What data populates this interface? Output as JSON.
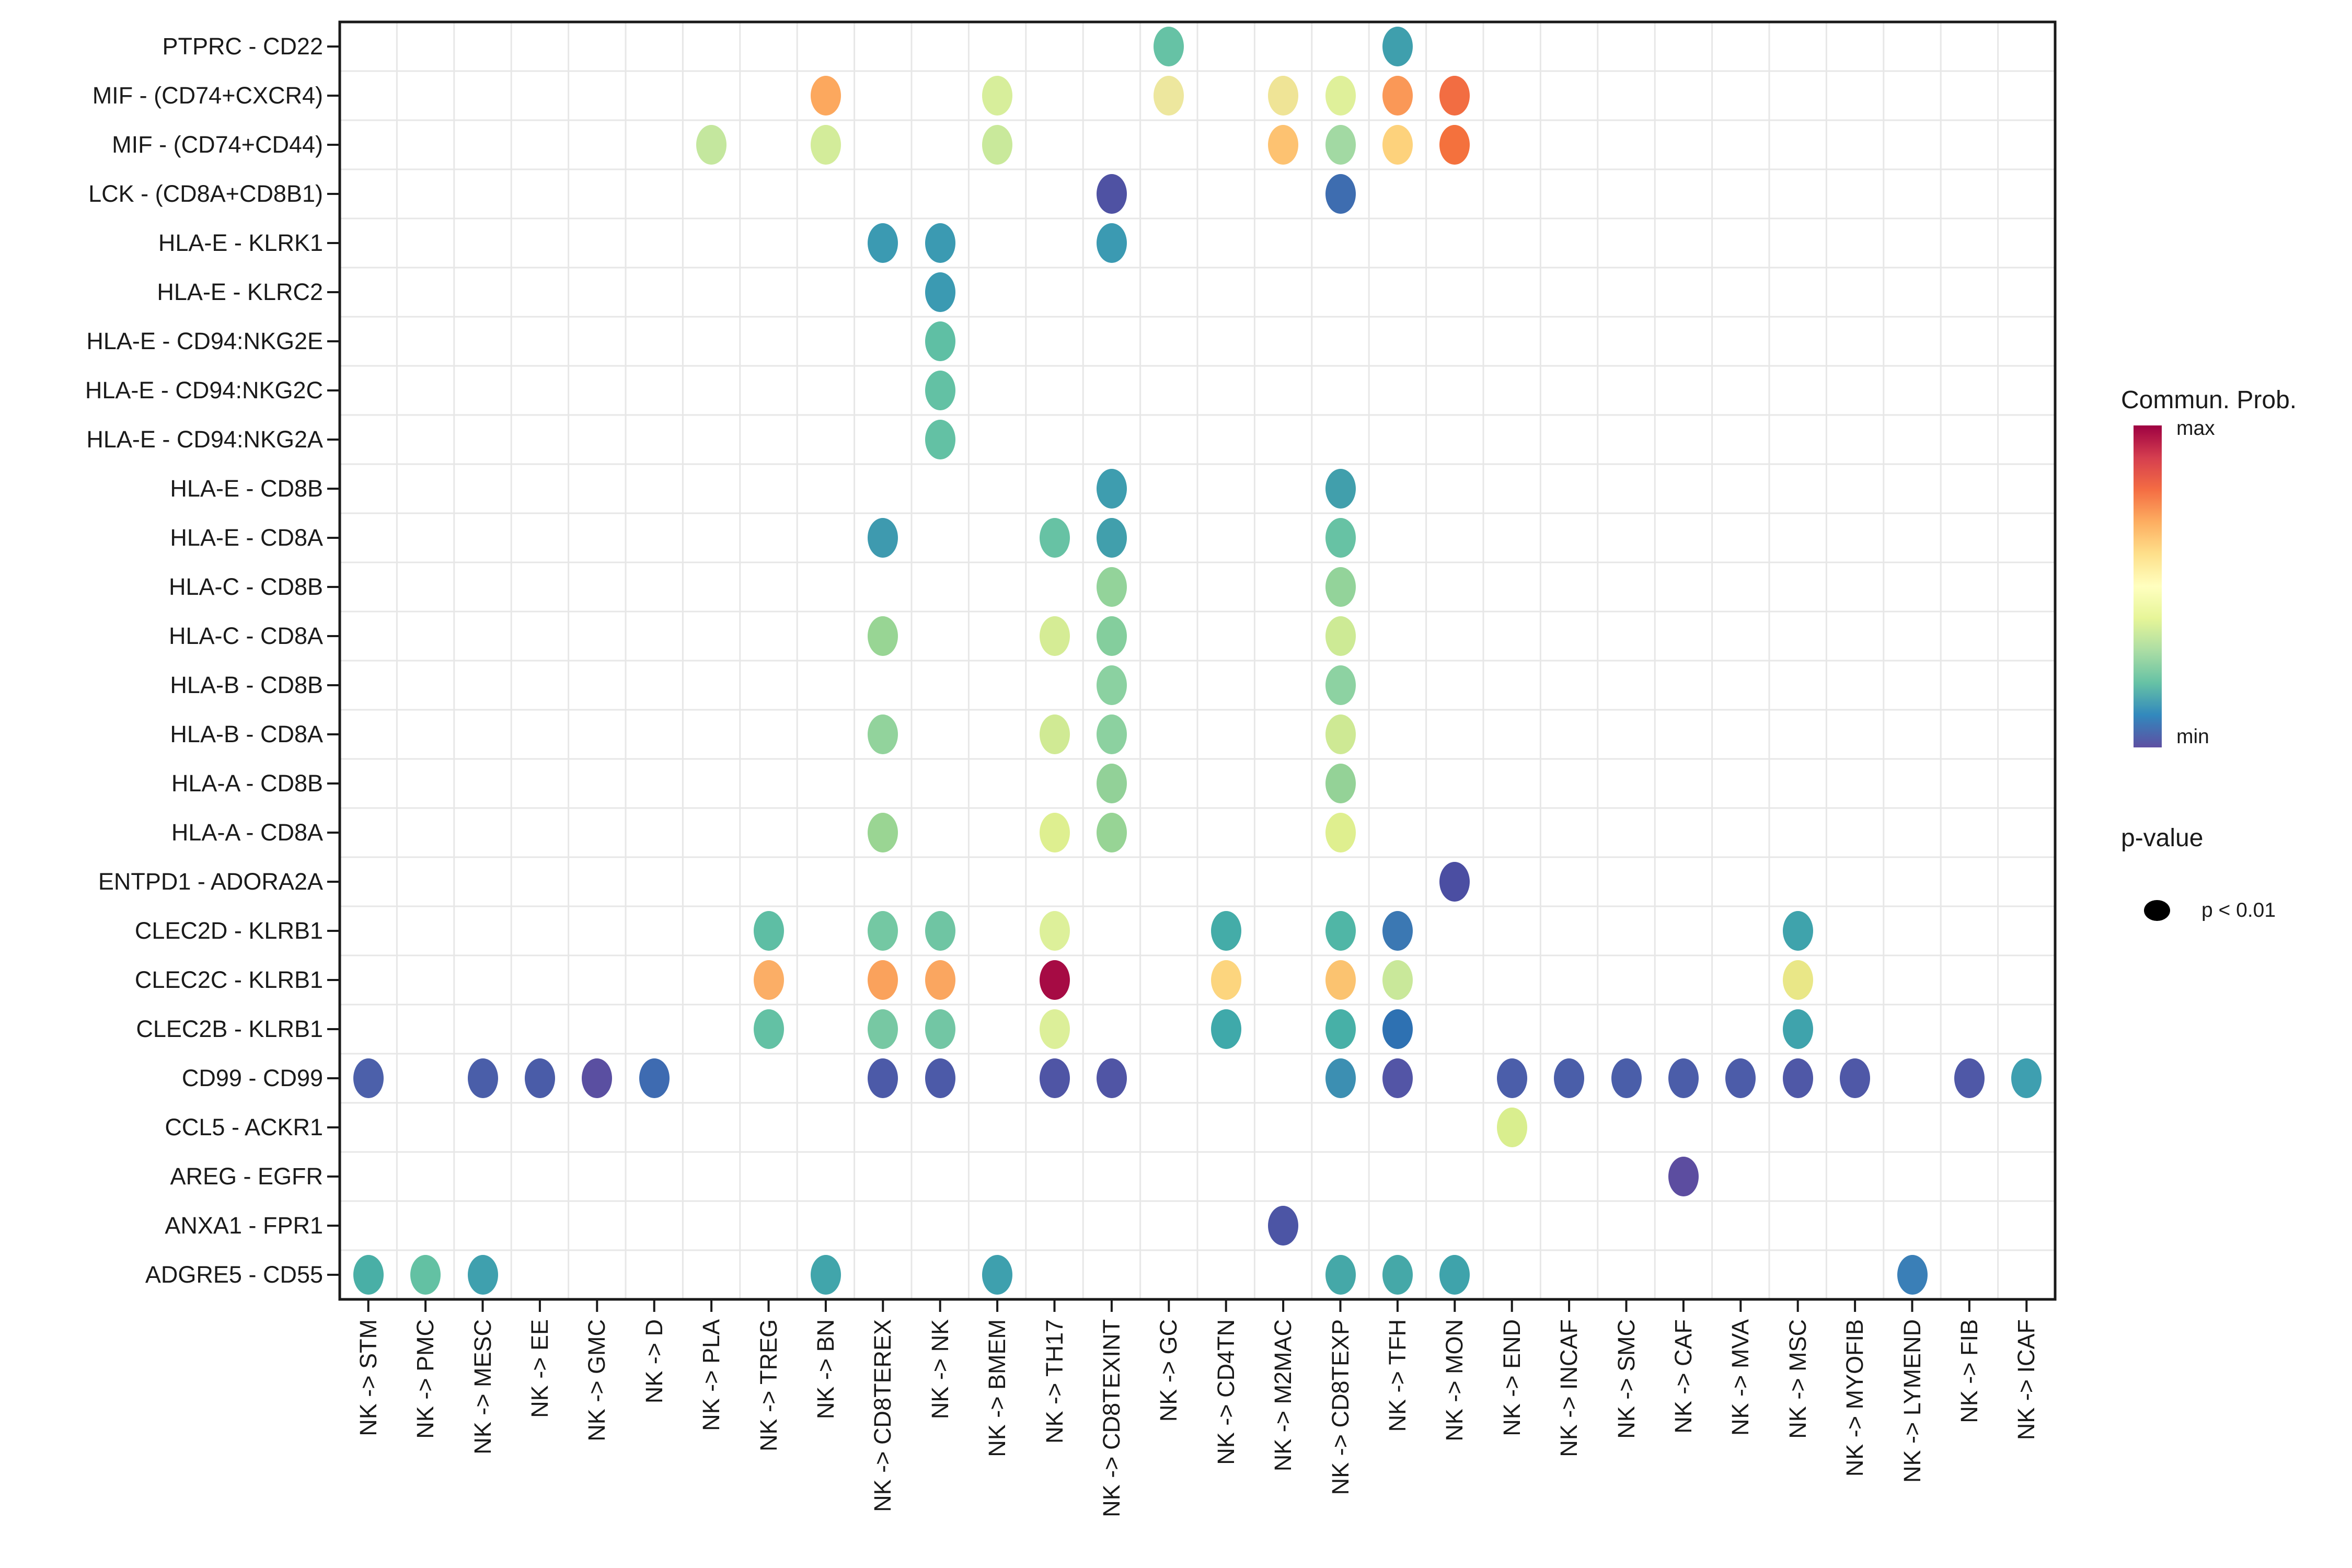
{
  "chart_data": {
    "type": "scatter",
    "subtype": "bubble-dotplot",
    "title": "",
    "xlabel": "",
    "ylabel": "",
    "grid": true,
    "legend_position": "right",
    "rows": [
      "PTPRC - CD22",
      "MIF - (CD74+CXCR4)",
      "MIF - (CD74+CD44)",
      "LCK - (CD8A+CD8B1)",
      "HLA-E - KLRK1",
      "HLA-E - KLRC2",
      "HLA-E - CD94:NKG2E",
      "HLA-E - CD94:NKG2C",
      "HLA-E - CD94:NKG2A",
      "HLA-E - CD8B",
      "HLA-E - CD8A",
      "HLA-C - CD8B",
      "HLA-C - CD8A",
      "HLA-B - CD8B",
      "HLA-B - CD8A",
      "HLA-A - CD8B",
      "HLA-A - CD8A",
      "ENTPD1 - ADORA2A",
      "CLEC2D - KLRB1",
      "CLEC2C - KLRB1",
      "CLEC2B - KLRB1",
      "CD99 - CD99",
      "CCL5 - ACKR1",
      "AREG - EGFR",
      "ANXA1 - FPR1",
      "ADGRE5 - CD55"
    ],
    "columns": [
      "NK -> STM",
      "NK -> PMC",
      "NK -> MESC",
      "NK -> EE",
      "NK -> GMC",
      "NK -> D",
      "NK -> PLA",
      "NK -> TREG",
      "NK -> BN",
      "NK -> CD8TEREX",
      "NK -> NK",
      "NK -> BMEM",
      "NK -> TH17",
      "NK -> CD8TEXINT",
      "NK -> GC",
      "NK -> CD4TN",
      "NK -> M2MAC",
      "NK -> CD8TEXP",
      "NK -> TFH",
      "NK -> MON",
      "NK -> END",
      "NK -> INCAF",
      "NK -> SMC",
      "NK -> CAF",
      "NK -> MVA",
      "NK -> MSC",
      "NK -> MYOFIB",
      "NK -> LYMEND",
      "NK -> FIB",
      "NK -> ICAF"
    ],
    "legend": {
      "color_title": "Commun. Prob.",
      "color_max_label": "max",
      "color_min_label": "min",
      "size_title": "p-value",
      "size_label": "p < 0.01"
    },
    "colormap": [
      "#9E0142",
      "#D53E4F",
      "#F46D43",
      "#FDAE61",
      "#FEE08B",
      "#FFFFBF",
      "#E6F598",
      "#ABDDA4",
      "#66C2A5",
      "#3288BD",
      "#5E4FA2"
    ],
    "colors": {
      "axis": "#1a1a1a",
      "gridline": "#e7e7e7",
      "panel_bg": "#ffffff"
    },
    "dots": [
      {
        "row": "PTPRC - CD22",
        "col": "NK -> GC",
        "color": "#66C2A5"
      },
      {
        "row": "PTPRC - CD22",
        "col": "NK -> TFH",
        "color": "#3F9FAD"
      },
      {
        "row": "MIF - (CD74+CXCR4)",
        "col": "NK -> BN",
        "color": "#FCA85E"
      },
      {
        "row": "MIF - (CD74+CXCR4)",
        "col": "NK -> BMEM",
        "color": "#D7EE9B"
      },
      {
        "row": "MIF - (CD74+CXCR4)",
        "col": "NK -> GC",
        "color": "#EDE79E"
      },
      {
        "row": "MIF - (CD74+CXCR4)",
        "col": "NK -> M2MAC",
        "color": "#EFE496"
      },
      {
        "row": "MIF - (CD74+CXCR4)",
        "col": "NK -> CD8TEXP",
        "color": "#DFF09A"
      },
      {
        "row": "MIF - (CD74+CXCR4)",
        "col": "NK -> TFH",
        "color": "#FA9857"
      },
      {
        "row": "MIF - (CD74+CXCR4)",
        "col": "NK -> MON",
        "color": "#F26D42"
      },
      {
        "row": "MIF - (CD74+CD44)",
        "col": "NK -> PLA",
        "color": "#C4E79E"
      },
      {
        "row": "MIF - (CD74+CD44)",
        "col": "NK -> BN",
        "color": "#D3EC9A"
      },
      {
        "row": "MIF - (CD74+CD44)",
        "col": "NK -> BMEM",
        "color": "#C9E99B"
      },
      {
        "row": "MIF - (CD74+CD44)",
        "col": "NK -> M2MAC",
        "color": "#FDC271"
      },
      {
        "row": "MIF - (CD74+CD44)",
        "col": "NK -> CD8TEXP",
        "color": "#A2D9A3"
      },
      {
        "row": "MIF - (CD74+CD44)",
        "col": "NK -> TFH",
        "color": "#FDD27C"
      },
      {
        "row": "MIF - (CD74+CD44)",
        "col": "NK -> MON",
        "color": "#F4713D"
      },
      {
        "row": "LCK - (CD8A+CD8B1)",
        "col": "NK -> CD8TEXINT",
        "color": "#4F52A3"
      },
      {
        "row": "LCK - (CD8A+CD8B1)",
        "col": "NK -> CD8TEXP",
        "color": "#3E6DB0"
      },
      {
        "row": "HLA-E - KLRK1",
        "col": "NK -> CD8TEREX",
        "color": "#3B9AB2"
      },
      {
        "row": "HLA-E - KLRK1",
        "col": "NK -> NK",
        "color": "#3B9AB2"
      },
      {
        "row": "HLA-E - KLRK1",
        "col": "NK -> CD8TEXINT",
        "color": "#3B9AB2"
      },
      {
        "row": "HLA-E - KLRC2",
        "col": "NK -> NK",
        "color": "#3B9AB2"
      },
      {
        "row": "HLA-E - CD94:NKG2E",
        "col": "NK -> NK",
        "color": "#5FBFA4"
      },
      {
        "row": "HLA-E - CD94:NKG2C",
        "col": "NK -> NK",
        "color": "#63C1A4"
      },
      {
        "row": "HLA-E - CD94:NKG2A",
        "col": "NK -> NK",
        "color": "#63C1A4"
      },
      {
        "row": "HLA-E - CD8B",
        "col": "NK -> CD8TEXINT",
        "color": "#3E9DAF"
      },
      {
        "row": "HLA-E - CD8B",
        "col": "NK -> CD8TEXP",
        "color": "#419FAC"
      },
      {
        "row": "HLA-E - CD8A",
        "col": "NK -> CD8TEREX",
        "color": "#3E9AAF"
      },
      {
        "row": "HLA-E - CD8A",
        "col": "NK -> TH17",
        "color": "#67C2A4"
      },
      {
        "row": "HLA-E - CD8A",
        "col": "NK -> CD8TEXINT",
        "color": "#419FAC"
      },
      {
        "row": "HLA-E - CD8A",
        "col": "NK -> CD8TEXP",
        "color": "#67C2A4"
      },
      {
        "row": "HLA-C - CD8B",
        "col": "NK -> CD8TEXINT",
        "color": "#93D39A"
      },
      {
        "row": "HLA-C - CD8B",
        "col": "NK -> CD8TEXP",
        "color": "#93D39A"
      },
      {
        "row": "HLA-C - CD8A",
        "col": "NK -> CD8TEREX",
        "color": "#98D594"
      },
      {
        "row": "HLA-C - CD8A",
        "col": "NK -> TH17",
        "color": "#D5EC95"
      },
      {
        "row": "HLA-C - CD8A",
        "col": "NK -> CD8TEXINT",
        "color": "#84CE9D"
      },
      {
        "row": "HLA-C - CD8A",
        "col": "NK -> CD8TEXP",
        "color": "#CDEA95"
      },
      {
        "row": "HLA-B - CD8B",
        "col": "NK -> CD8TEXINT",
        "color": "#8BD1A1"
      },
      {
        "row": "HLA-B - CD8B",
        "col": "NK -> CD8TEXP",
        "color": "#8DD2A2"
      },
      {
        "row": "HLA-B - CD8A",
        "col": "NK -> CD8TEREX",
        "color": "#92D39C"
      },
      {
        "row": "HLA-B - CD8A",
        "col": "NK -> TH17",
        "color": "#D0EA94"
      },
      {
        "row": "HLA-B - CD8A",
        "col": "NK -> CD8TEXINT",
        "color": "#8CD1A0"
      },
      {
        "row": "HLA-B - CD8A",
        "col": "NK -> CD8TEXP",
        "color": "#CEE994"
      },
      {
        "row": "HLA-A - CD8B",
        "col": "NK -> CD8TEXINT",
        "color": "#92D198"
      },
      {
        "row": "HLA-A - CD8B",
        "col": "NK -> CD8TEXP",
        "color": "#94D297"
      },
      {
        "row": "HLA-A - CD8A",
        "col": "NK -> CD8TEREX",
        "color": "#9AD593"
      },
      {
        "row": "HLA-A - CD8A",
        "col": "NK -> TH17",
        "color": "#DEEF90"
      },
      {
        "row": "HLA-A - CD8A",
        "col": "NK -> CD8TEXINT",
        "color": "#97D495"
      },
      {
        "row": "HLA-A - CD8A",
        "col": "NK -> CD8TEXP",
        "color": "#DFEF8F"
      },
      {
        "row": "ENTPD1 - ADORA2A",
        "col": "NK -> MON",
        "color": "#4B4EA2"
      },
      {
        "row": "CLEC2D - KLRB1",
        "col": "NK -> TREG",
        "color": "#5EBEA4"
      },
      {
        "row": "CLEC2D - KLRB1",
        "col": "NK -> CD8TEREX",
        "color": "#74C8A3"
      },
      {
        "row": "CLEC2D - KLRB1",
        "col": "NK -> NK",
        "color": "#6FC5A3"
      },
      {
        "row": "CLEC2D - KLRB1",
        "col": "NK -> TH17",
        "color": "#DDF09A"
      },
      {
        "row": "CLEC2D - KLRB1",
        "col": "NK -> CD4TN",
        "color": "#44ACA8"
      },
      {
        "row": "CLEC2D - KLRB1",
        "col": "NK -> CD8TEXP",
        "color": "#50B6A6"
      },
      {
        "row": "CLEC2D - KLRB1",
        "col": "NK -> TFH",
        "color": "#3B78B3"
      },
      {
        "row": "CLEC2D - KLRB1",
        "col": "NK -> MSC",
        "color": "#3FA3AC"
      },
      {
        "row": "CLEC2C - KLRB1",
        "col": "NK -> TREG",
        "color": "#FBAE66"
      },
      {
        "row": "CLEC2C - KLRB1",
        "col": "NK -> CD8TEREX",
        "color": "#FAA25C"
      },
      {
        "row": "CLEC2C - KLRB1",
        "col": "NK -> NK",
        "color": "#FAA660"
      },
      {
        "row": "CLEC2C - KLRB1",
        "col": "NK -> TH17",
        "color": "#A60B44"
      },
      {
        "row": "CLEC2C - KLRB1",
        "col": "NK -> CD4TN",
        "color": "#FCD57E"
      },
      {
        "row": "CLEC2C - KLRB1",
        "col": "NK -> CD8TEXP",
        "color": "#FBC370"
      },
      {
        "row": "CLEC2C - KLRB1",
        "col": "NK -> TFH",
        "color": "#C9E89A"
      },
      {
        "row": "CLEC2C - KLRB1",
        "col": "NK -> MSC",
        "color": "#E9E787"
      },
      {
        "row": "CLEC2B - KLRB1",
        "col": "NK -> TREG",
        "color": "#63C1A4"
      },
      {
        "row": "CLEC2B - KLRB1",
        "col": "NK -> CD8TEREX",
        "color": "#77C8A3"
      },
      {
        "row": "CLEC2B - KLRB1",
        "col": "NK -> NK",
        "color": "#72C6A4"
      },
      {
        "row": "CLEC2B - KLRB1",
        "col": "NK -> TH17",
        "color": "#DCEF99"
      },
      {
        "row": "CLEC2B - KLRB1",
        "col": "NK -> CD4TN",
        "color": "#3FA9AA"
      },
      {
        "row": "CLEC2B - KLRB1",
        "col": "NK -> CD8TEXP",
        "color": "#47B0A7"
      },
      {
        "row": "CLEC2B - KLRB1",
        "col": "NK -> TFH",
        "color": "#2E71B2"
      },
      {
        "row": "CLEC2B - KLRB1",
        "col": "NK -> MSC",
        "color": "#3FA3AC"
      },
      {
        "row": "CD99 - CD99",
        "col": "NK -> STM",
        "color": "#4C60AA"
      },
      {
        "row": "CD99 - CD99",
        "col": "NK -> MESC",
        "color": "#4A5EA9"
      },
      {
        "row": "CD99 - CD99",
        "col": "NK -> EE",
        "color": "#4A5CA8"
      },
      {
        "row": "CD99 - CD99",
        "col": "NK -> GMC",
        "color": "#5A4FA1"
      },
      {
        "row": "CD99 - CD99",
        "col": "NK -> D",
        "color": "#3E6BB1"
      },
      {
        "row": "CD99 - CD99",
        "col": "NK -> CD8TEREX",
        "color": "#4C5AA8"
      },
      {
        "row": "CD99 - CD99",
        "col": "NK -> NK",
        "color": "#4C5AA8"
      },
      {
        "row": "CD99 - CD99",
        "col": "NK -> TH17",
        "color": "#4F55A5"
      },
      {
        "row": "CD99 - CD99",
        "col": "NK -> CD8TEXINT",
        "color": "#5055A5"
      },
      {
        "row": "CD99 - CD99",
        "col": "NK -> CD8TEXP",
        "color": "#3C8FB2"
      },
      {
        "row": "CD99 - CD99",
        "col": "NK -> TFH",
        "color": "#5355A6"
      },
      {
        "row": "CD99 - CD99",
        "col": "NK -> END",
        "color": "#4B5EAA"
      },
      {
        "row": "CD99 - CD99",
        "col": "NK -> INCAF",
        "color": "#4A5EA9"
      },
      {
        "row": "CD99 - CD99",
        "col": "NK -> SMC",
        "color": "#4A5EA9"
      },
      {
        "row": "CD99 - CD99",
        "col": "NK -> CAF",
        "color": "#4B5DA9"
      },
      {
        "row": "CD99 - CD99",
        "col": "NK -> MVA",
        "color": "#4C5CA9"
      },
      {
        "row": "CD99 - CD99",
        "col": "NK -> MSC",
        "color": "#4F58A7"
      },
      {
        "row": "CD99 - CD99",
        "col": "NK -> MYOFIB",
        "color": "#4F58A7"
      },
      {
        "row": "CD99 - CD99",
        "col": "NK -> FIB",
        "color": "#4F58A7"
      },
      {
        "row": "CD99 - CD99",
        "col": "NK -> ICAF",
        "color": "#3E9FB0"
      },
      {
        "row": "CCL5 - ACKR1",
        "col": "NK -> END",
        "color": "#D9EE8E"
      },
      {
        "row": "AREG - EGFR",
        "col": "NK -> CAF",
        "color": "#5C4DA0"
      },
      {
        "row": "ANXA1 - FPR1",
        "col": "NK -> M2MAC",
        "color": "#4C55A5"
      },
      {
        "row": "ADGRE5 - CD55",
        "col": "NK -> STM",
        "color": "#49AFA6"
      },
      {
        "row": "ADGRE5 - CD55",
        "col": "NK -> PMC",
        "color": "#63C1A3"
      },
      {
        "row": "ADGRE5 - CD55",
        "col": "NK -> MESC",
        "color": "#3FA0AE"
      },
      {
        "row": "ADGRE5 - CD55",
        "col": "NK -> BN",
        "color": "#41A5AB"
      },
      {
        "row": "ADGRE5 - CD55",
        "col": "NK -> BMEM",
        "color": "#3EA0AE"
      },
      {
        "row": "ADGRE5 - CD55",
        "col": "NK -> CD8TEXP",
        "color": "#45A8A8"
      },
      {
        "row": "ADGRE5 - CD55",
        "col": "NK -> TFH",
        "color": "#45A8A8"
      },
      {
        "row": "ADGRE5 - CD55",
        "col": "NK -> MON",
        "color": "#3FA3AB"
      },
      {
        "row": "ADGRE5 - CD55",
        "col": "NK -> LYMEND",
        "color": "#3A7FB7"
      }
    ]
  }
}
